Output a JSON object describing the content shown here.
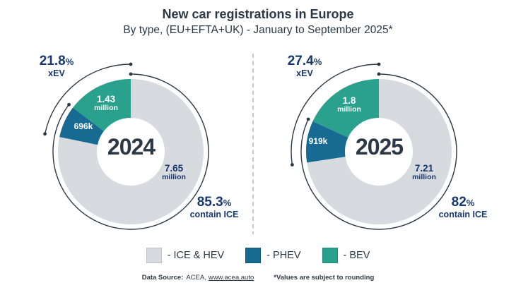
{
  "header": {
    "title": "New car registrations in Europe",
    "subtitle": "By type, (EU+EFTA+UK) - January to September 2025*"
  },
  "symbols": {
    "percent": "%"
  },
  "colors": {
    "ice_hev": "#d7dade",
    "phev": "#176a91",
    "bev": "#2aa18d",
    "annotation": "#2b3946",
    "value_text": "#17386d",
    "divider": "#b4bbc1"
  },
  "charts": [
    {
      "year": "2024",
      "xev_pct": "21.8",
      "xev_label": "xEV",
      "ice_pct": "85.3",
      "ice_label": "contain ICE",
      "segments": {
        "ice_hev": {
          "line1": "7.65",
          "line2": "million"
        },
        "phev": {
          "line1": "696k"
        },
        "bev": {
          "line1": "1.43",
          "line2": "million"
        }
      }
    },
    {
      "year": "2025",
      "xev_pct": "27.4",
      "xev_label": "xEV",
      "ice_pct": "82",
      "ice_label": "contain ICE",
      "segments": {
        "ice_hev": {
          "line1": "7.21",
          "line2": "million"
        },
        "phev": {
          "line1": "919k"
        },
        "bev": {
          "line1": "1.8",
          "line2": "million"
        }
      }
    }
  ],
  "legend": [
    {
      "key": "ice_hev",
      "label": "- ICE & HEV"
    },
    {
      "key": "phev",
      "label": "- PHEV"
    },
    {
      "key": "bev",
      "label": "- BEV"
    }
  ],
  "footer": {
    "source_label": "Data Source:",
    "source_name": "ACEA,",
    "source_link": "www.acea.auto",
    "note": "*Values are subject to rounding"
  },
  "chart_data": [
    {
      "type": "pie",
      "title": "2024",
      "subtitle": "New car registrations in Europe (EU+EFTA+UK), Jan-Sep",
      "categories": [
        "ICE & HEV",
        "PHEV",
        "BEV"
      ],
      "values": [
        7650000,
        696000,
        1430000
      ],
      "value_labels": [
        "7.65 million",
        "696k",
        "1.43 million"
      ],
      "colors": [
        "#d7dade",
        "#176a91",
        "#2aa18d"
      ],
      "annotations": {
        "xEV_share_pct": 21.8,
        "contain_ICE_pct": 85.3
      },
      "layout": {
        "donut": true,
        "start": "12 o'clock",
        "direction": "clockwise order: ICE & HEV, PHEV, BEV"
      }
    },
    {
      "type": "pie",
      "title": "2025",
      "subtitle": "New car registrations in Europe (EU+EFTA+UK), Jan-Sep",
      "categories": [
        "ICE & HEV",
        "PHEV",
        "BEV"
      ],
      "values": [
        7210000,
        919000,
        1800000
      ],
      "value_labels": [
        "7.21 million",
        "919k",
        "1.8 million"
      ],
      "colors": [
        "#d7dade",
        "#176a91",
        "#2aa18d"
      ],
      "annotations": {
        "xEV_share_pct": 27.4,
        "contain_ICE_pct": 82
      },
      "layout": {
        "donut": true,
        "start": "12 o'clock",
        "direction": "clockwise order: ICE & HEV, PHEV, BEV"
      }
    }
  ]
}
